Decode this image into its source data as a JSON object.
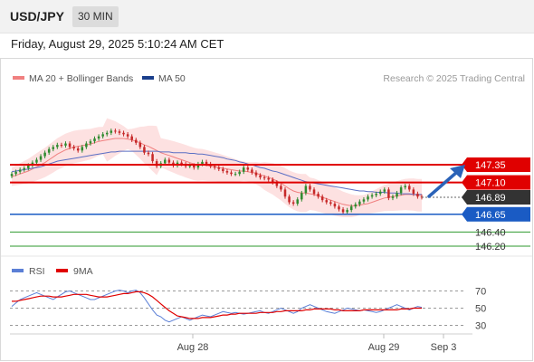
{
  "header": {
    "symbol": "USD/JPY",
    "timeframe": "30 MIN",
    "timestamp": "Friday, August 29, 2025 5:10:24 AM CET"
  },
  "legend": {
    "ma20": "MA 20 + Bollinger Bands",
    "ma50": "MA 50",
    "copyright": "Research © 2025 Trading Central"
  },
  "rsi_legend": {
    "rsi": "RSI",
    "ma9": "9MA"
  },
  "colors": {
    "resistance": "#e00000",
    "pivot": "#1a5bc4",
    "support": "#2e9a2e",
    "current": "#333333",
    "candle_up": "#2f8a2f",
    "candle_down": "#c62828",
    "band_fill": "#fde1e1",
    "ma20": "#f08080",
    "ma50": "#5b6fc4",
    "rsi": "#5b7fd6",
    "rsi_ma": "#e00000",
    "arrow": "#2b63b8"
  },
  "chart_data": [
    {
      "type": "line",
      "title": "USD/JPY 30 MIN",
      "x_ticks": [
        "Aug 28",
        "Aug 29",
        "Sep 3"
      ],
      "ylim": [
        146.1,
        147.8
      ],
      "levels": [
        {
          "value": 147.35,
          "label": "147.35",
          "kind": "resistance"
        },
        {
          "value": 147.1,
          "label": "147.10",
          "kind": "resistance"
        },
        {
          "value": 146.89,
          "label": "146.89",
          "kind": "current"
        },
        {
          "value": 146.65,
          "label": "146.65",
          "kind": "pivot"
        },
        {
          "value": 146.4,
          "label": "146.40",
          "kind": "support"
        },
        {
          "value": 146.2,
          "label": "146.20",
          "kind": "support"
        }
      ],
      "price_close": [
        147.22,
        147.25,
        147.28,
        147.3,
        147.34,
        147.38,
        147.42,
        147.47,
        147.52,
        147.57,
        147.6,
        147.63,
        147.62,
        147.65,
        147.6,
        147.58,
        147.55,
        147.6,
        147.65,
        147.68,
        147.72,
        147.75,
        147.78,
        147.8,
        147.83,
        147.82,
        147.8,
        147.78,
        147.75,
        147.7,
        147.66,
        147.6,
        147.52,
        147.5,
        147.4,
        147.33,
        147.37,
        147.42,
        147.38,
        147.34,
        147.38,
        147.36,
        147.33,
        147.34,
        147.31,
        147.36,
        147.39,
        147.36,
        147.33,
        147.31,
        147.29,
        147.26,
        147.24,
        147.22,
        147.22,
        147.25,
        147.31,
        147.28,
        147.24,
        147.2,
        147.17,
        147.16,
        147.14,
        147.1,
        147.05,
        147.0,
        146.9,
        146.82,
        146.8,
        146.86,
        146.95,
        147.05,
        147.0,
        146.94,
        146.9,
        146.85,
        146.82,
        146.8,
        146.76,
        146.72,
        146.68,
        146.71,
        146.76,
        146.79,
        146.83,
        146.86,
        146.9,
        146.92,
        146.94,
        146.97,
        147.0,
        146.88,
        146.9,
        146.95,
        147.03,
        147.05,
        147.0,
        146.94,
        146.9,
        146.89
      ],
      "ma20": [
        147.18,
        147.2,
        147.22,
        147.24,
        147.26,
        147.29,
        147.32,
        147.35,
        147.38,
        147.42,
        147.46,
        147.5,
        147.53,
        147.56,
        147.58,
        147.6,
        147.61,
        147.62,
        147.63,
        147.64,
        147.66,
        147.68,
        147.69,
        147.7,
        147.71,
        147.72,
        147.72,
        147.72,
        147.71,
        147.7,
        147.68,
        147.66,
        147.63,
        147.61,
        147.58,
        147.55,
        147.52,
        147.5,
        147.48,
        147.46,
        147.44,
        147.42,
        147.4,
        147.38,
        147.36,
        147.35,
        147.35,
        147.34,
        147.33,
        147.32,
        147.31,
        147.3,
        147.29,
        147.28,
        147.27,
        147.26,
        147.26,
        147.25,
        147.24,
        147.23,
        147.21,
        147.19,
        147.17,
        147.15,
        147.12,
        147.09,
        147.05,
        147.01,
        146.98,
        146.96,
        146.95,
        146.95,
        146.94,
        146.93,
        146.91,
        146.89,
        146.87,
        146.85,
        146.83,
        146.81,
        146.79,
        146.78,
        146.77,
        146.77,
        146.78,
        146.79,
        146.8,
        146.82,
        146.84,
        146.86,
        146.88,
        146.89,
        146.9,
        146.91,
        146.92,
        146.93,
        146.93,
        146.93,
        146.92,
        146.92
      ],
      "ma50": [
        147.25,
        147.26,
        147.27,
        147.28,
        147.29,
        147.3,
        147.31,
        147.32,
        147.34,
        147.36,
        147.38,
        147.4,
        147.41,
        147.42,
        147.43,
        147.44,
        147.45,
        147.46,
        147.47,
        147.48,
        147.49,
        147.5,
        147.51,
        147.52,
        147.53,
        147.53,
        147.54,
        147.54,
        147.54,
        147.54,
        147.54,
        147.54,
        147.54,
        147.54,
        147.54,
        147.54,
        147.53,
        147.53,
        147.53,
        147.52,
        147.52,
        147.52,
        147.52,
        147.51,
        147.51,
        147.5,
        147.5,
        147.49,
        147.48,
        147.47,
        147.46,
        147.45,
        147.43,
        147.42,
        147.41,
        147.39,
        147.38,
        147.36,
        147.35,
        147.33,
        147.31,
        147.3,
        147.28,
        147.26,
        147.25,
        147.23,
        147.21,
        147.19,
        147.17,
        147.15,
        147.13,
        147.11,
        147.1,
        147.09,
        147.08,
        147.07,
        147.06,
        147.05,
        147.04,
        147.03,
        147.02,
        147.01,
        147.0,
        146.99,
        146.98,
        146.98,
        146.97,
        146.97,
        146.96,
        146.96,
        146.96,
        146.95,
        146.95,
        146.95,
        146.94,
        146.94,
        146.94,
        146.93,
        146.93,
        146.93
      ]
    },
    {
      "type": "line",
      "title": "RSI",
      "ylim": [
        25,
        80
      ],
      "y_ticks": [
        70,
        50,
        30
      ],
      "rsi": [
        52,
        56,
        60,
        62,
        64,
        66,
        68,
        66,
        64,
        62,
        60,
        63,
        66,
        69,
        70,
        68,
        66,
        64,
        62,
        60,
        60,
        62,
        64,
        66,
        68,
        70,
        71,
        70,
        68,
        70,
        71,
        68,
        62,
        55,
        48,
        42,
        40,
        36,
        34,
        36,
        38,
        40,
        38,
        36,
        38,
        40,
        42,
        41,
        40,
        42,
        44,
        46,
        45,
        44,
        45,
        44,
        43,
        44,
        45,
        46,
        47,
        45,
        44,
        46,
        48,
        50,
        48,
        46,
        44,
        46,
        50,
        52,
        54,
        52,
        50,
        48,
        46,
        45,
        44,
        46,
        48,
        50,
        49,
        48,
        47,
        48,
        47,
        46,
        45,
        46,
        48,
        50,
        52,
        54,
        52,
        50,
        48,
        50,
        52,
        51
      ],
      "ma9": [
        58,
        58,
        59,
        60,
        61,
        62,
        63,
        64,
        64,
        64,
        63,
        63,
        63,
        64,
        65,
        66,
        66,
        66,
        66,
        65,
        64,
        63,
        63,
        63,
        64,
        65,
        66,
        67,
        67,
        68,
        69,
        69,
        68,
        66,
        63,
        59,
        55,
        51,
        47,
        44,
        41,
        40,
        39,
        38,
        38,
        38,
        39,
        39,
        39,
        40,
        41,
        42,
        42,
        43,
        43,
        44,
        44,
        44,
        44,
        44,
        45,
        45,
        45,
        45,
        46,
        46,
        47,
        47,
        47,
        47,
        47,
        48,
        48,
        49,
        49,
        49,
        49,
        49,
        48,
        48,
        47,
        47,
        47,
        47,
        47,
        48,
        48,
        48,
        48,
        48,
        48,
        48,
        48,
        48,
        49,
        49,
        49,
        50,
        50,
        50
      ]
    }
  ]
}
